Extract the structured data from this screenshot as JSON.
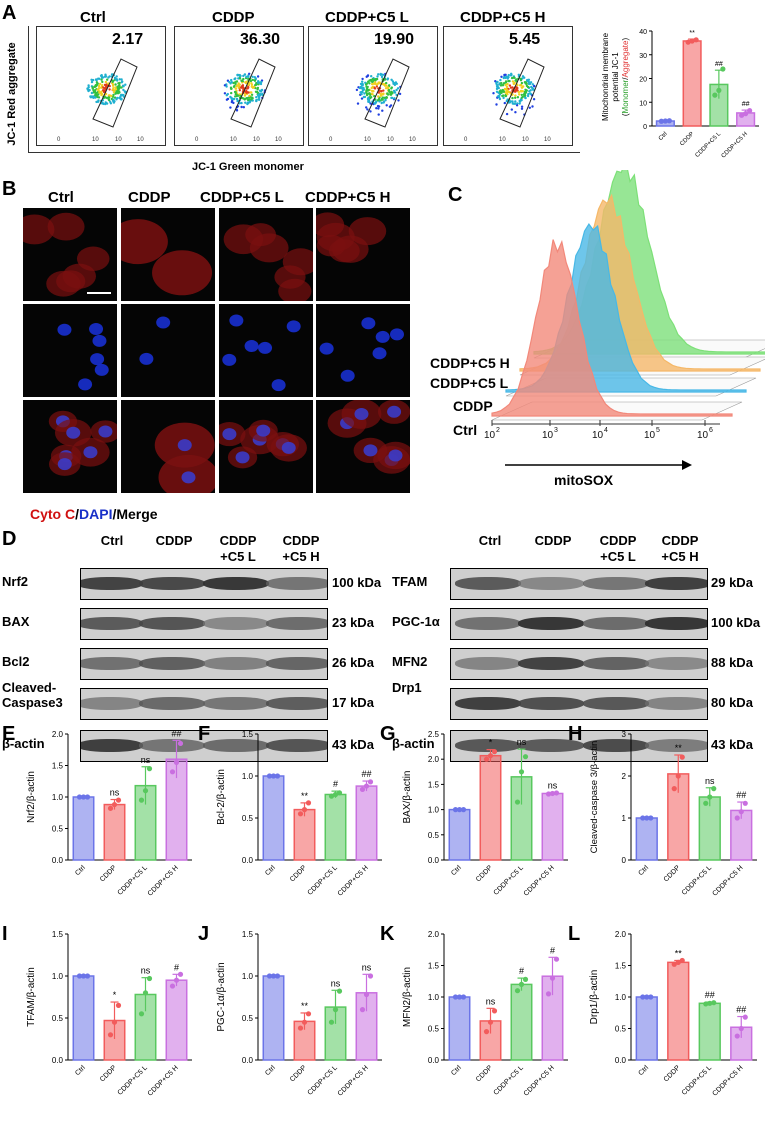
{
  "panels": {
    "A": "A",
    "B": "B",
    "C": "C",
    "D": "D",
    "E": "E",
    "F": "F",
    "G": "G",
    "H": "H",
    "I": "I",
    "J": "J",
    "K": "K",
    "L": "L"
  },
  "groups": [
    "Ctrl",
    "CDDP",
    "CDDP+C5 L",
    "CDDP+C5 H"
  ],
  "panel_a": {
    "ylabel_flow": "JC-1 Red aggregate",
    "xlabel_flow": "JC-1 Green monomer",
    "percentages": [
      "2.17",
      "36.30",
      "19.90",
      "5.45"
    ],
    "axis_ticks": [
      "0",
      "10",
      "10",
      "10"
    ],
    "bar_ylabel_line1": "Mitochondrial membrane",
    "bar_ylabel_line2": "potential JC-1",
    "bar_ylabel_mono": "Monomer",
    "bar_ylabel_agg": "Aggregate"
  },
  "panel_b": {
    "legend_cyto": "Cyto C",
    "legend_dapi": "DAPI",
    "legend_merge": "Merge"
  },
  "panel_c": {
    "rows": [
      "CDDP+C5 H",
      "CDDP+C5 L",
      "CDDP",
      "Ctrl"
    ],
    "xlabel": "mitoSOX",
    "ticks": [
      "10",
      "10",
      "10",
      "10",
      "10"
    ],
    "tick_exps": [
      "2",
      "3",
      "4",
      "5",
      "6"
    ]
  },
  "panel_d": {
    "lanes": [
      "Ctrl",
      "CDDP",
      "CDDP\n+C5 L",
      "CDDP\n+C5 H"
    ],
    "left_rows": [
      {
        "name": "Nrf2",
        "kda": "100 kDa"
      },
      {
        "name": "BAX",
        "kda": "23 kDa"
      },
      {
        "name": "Bcl2",
        "kda": "26 kDa"
      },
      {
        "name": "Cleaved-\nCaspase3",
        "kda": "17 kDa"
      },
      {
        "name": "β-actin",
        "kda": "43 kDa"
      }
    ],
    "right_rows": [
      {
        "name": "TFAM",
        "kda": "29 kDa"
      },
      {
        "name": "PGC-1α",
        "kda": "100 kDa"
      },
      {
        "name": "MFN2",
        "kda": "88 kDa"
      },
      {
        "name": "Drp1",
        "kda": "80 kDa"
      },
      {
        "name": "β-actin",
        "kda": "43 kDa"
      }
    ]
  },
  "colors": {
    "ctrl": "#6b74e8",
    "cddp": "#f25c5c",
    "c5l": "#58c85e",
    "c5h": "#c96fe0"
  },
  "chart_data": [
    {
      "id": "A",
      "type": "bar",
      "ylabel": "Mitochondrial membrane potential JC-1 (Monomer/Aggregate)",
      "categories": [
        "Ctrl",
        "CDDP",
        "CDDP+C5 L",
        "CDDP+C5 H"
      ],
      "values": [
        2.1,
        35.8,
        17.5,
        5.5
      ],
      "errors": [
        0.3,
        0.8,
        6,
        1.2
      ],
      "ylim": [
        0,
        40
      ],
      "yticks": [
        "0",
        "10",
        "20",
        "30",
        "40"
      ],
      "marks": [
        "",
        "**",
        "##",
        "##"
      ],
      "points": [
        [
          2,
          2.1,
          2.2
        ],
        [
          35.3,
          35.8,
          36.3
        ],
        [
          13,
          15,
          24
        ],
        [
          4.5,
          5.2,
          6.5
        ]
      ]
    },
    {
      "id": "E",
      "type": "bar",
      "ylabel": "Nrf2/β-actin",
      "categories": [
        "Ctrl",
        "CDDP",
        "CDDP+C5 L",
        "CDDP+C5 H"
      ],
      "values": [
        1.0,
        0.88,
        1.18,
        1.6
      ],
      "errors": [
        0,
        0.08,
        0.3,
        0.3
      ],
      "ylim": [
        0,
        2.0
      ],
      "yticks": [
        "0.0",
        "0.5",
        "1.0",
        "1.5",
        "2.0"
      ],
      "marks": [
        "",
        "ns",
        "ns",
        "##"
      ],
      "points": [
        [
          1,
          1,
          1
        ],
        [
          0.82,
          0.88,
          0.95
        ],
        [
          0.95,
          1.1,
          1.45
        ],
        [
          1.4,
          1.55,
          1.85
        ]
      ]
    },
    {
      "id": "F",
      "type": "bar",
      "ylabel": "Bcl-2/β-actin",
      "categories": [
        "Ctrl",
        "CDDP",
        "CDDP+C5 L",
        "CDDP+C5 H"
      ],
      "values": [
        1.0,
        0.6,
        0.78,
        0.88
      ],
      "errors": [
        0,
        0.08,
        0.04,
        0.06
      ],
      "ylim": [
        0,
        1.5
      ],
      "yticks": [
        "0.0",
        "0.5",
        "1.0",
        "1.5"
      ],
      "marks": [
        "",
        "**",
        "#",
        "##"
      ],
      "points": [
        [
          1,
          1,
          1
        ],
        [
          0.55,
          0.6,
          0.68
        ],
        [
          0.76,
          0.78,
          0.8
        ],
        [
          0.84,
          0.88,
          0.93
        ]
      ]
    },
    {
      "id": "G",
      "type": "bar",
      "ylabel": "BAX/β-actin",
      "categories": [
        "Ctrl",
        "CDDP",
        "CDDP+C5 L",
        "CDDP+C5 H"
      ],
      "values": [
        1.0,
        2.07,
        1.65,
        1.32
      ],
      "errors": [
        0,
        0.12,
        0.55,
        0.02
      ],
      "ylim": [
        0,
        2.5
      ],
      "yticks": [
        "0.0",
        "0.5",
        "1.0",
        "1.5",
        "2.0",
        "2.5"
      ],
      "marks": [
        "",
        "*",
        "ns",
        "ns"
      ],
      "points": [
        [
          1,
          1,
          1
        ],
        [
          2.0,
          2.07,
          2.15
        ],
        [
          1.15,
          1.75,
          2.05
        ],
        [
          1.31,
          1.32,
          1.33
        ]
      ]
    },
    {
      "id": "H",
      "type": "bar",
      "ylabel": "Cleaved-caspase 3/β-actin",
      "categories": [
        "Ctrl",
        "CDDP",
        "CDDP+C5 L",
        "CDDP+C5 H"
      ],
      "values": [
        1.0,
        2.05,
        1.5,
        1.18
      ],
      "errors": [
        0,
        0.45,
        0.22,
        0.2
      ],
      "ylim": [
        0,
        3
      ],
      "yticks": [
        "0",
        "1",
        "2",
        "3"
      ],
      "marks": [
        "",
        "**",
        "ns",
        "##"
      ],
      "points": [
        [
          1,
          1,
          1
        ],
        [
          1.7,
          2.0,
          2.45
        ],
        [
          1.35,
          1.5,
          1.7
        ],
        [
          1.0,
          1.15,
          1.35
        ]
      ]
    },
    {
      "id": "I",
      "type": "bar",
      "ylabel": "TFAM/β-actin",
      "categories": [
        "Ctrl",
        "CDDP",
        "CDDP+C5 L",
        "CDDP+C5 H"
      ],
      "values": [
        1.0,
        0.47,
        0.78,
        0.95
      ],
      "errors": [
        0,
        0.22,
        0.2,
        0.07
      ],
      "ylim": [
        0,
        1.5
      ],
      "yticks": [
        "0.0",
        "0.5",
        "1.0",
        "1.5"
      ],
      "marks": [
        "",
        "*",
        "ns",
        "#"
      ],
      "points": [
        [
          1,
          1,
          1
        ],
        [
          0.3,
          0.45,
          0.65
        ],
        [
          0.55,
          0.8,
          0.97
        ],
        [
          0.88,
          0.95,
          1.02
        ]
      ]
    },
    {
      "id": "J",
      "type": "bar",
      "ylabel": "PGC-1α/β-actin",
      "categories": [
        "Ctrl",
        "CDDP",
        "CDDP+C5 L",
        "CDDP+C5 H"
      ],
      "values": [
        1.0,
        0.46,
        0.63,
        0.8
      ],
      "errors": [
        0,
        0.1,
        0.2,
        0.22
      ],
      "ylim": [
        0,
        1.5
      ],
      "yticks": [
        "0.0",
        "0.5",
        "1.0",
        "1.5"
      ],
      "marks": [
        "",
        "**",
        "ns",
        "ns"
      ],
      "points": [
        [
          1,
          1,
          1
        ],
        [
          0.38,
          0.45,
          0.55
        ],
        [
          0.45,
          0.6,
          0.82
        ],
        [
          0.6,
          0.78,
          1.0
        ]
      ]
    },
    {
      "id": "K",
      "type": "bar",
      "ylabel": "MFN2/β-actin",
      "categories": [
        "Ctrl",
        "CDDP",
        "CDDP+C5 L",
        "CDDP+C5 H"
      ],
      "values": [
        1.0,
        0.62,
        1.2,
        1.33
      ],
      "errors": [
        0,
        0.2,
        0.1,
        0.3
      ],
      "ylim": [
        0,
        2.0
      ],
      "yticks": [
        "0.0",
        "0.5",
        "1.0",
        "1.5",
        "2.0"
      ],
      "marks": [
        "",
        "ns",
        "#",
        "#"
      ],
      "points": [
        [
          1,
          1,
          1
        ],
        [
          0.45,
          0.6,
          0.78
        ],
        [
          1.1,
          1.2,
          1.28
        ],
        [
          1.05,
          1.3,
          1.6
        ]
      ]
    },
    {
      "id": "L",
      "type": "bar",
      "ylabel": "Drp1/β-actin",
      "categories": [
        "Ctrl",
        "CDDP",
        "CDDP+C5 L",
        "CDDP+C5 H"
      ],
      "values": [
        1.0,
        1.55,
        0.9,
        0.52
      ],
      "errors": [
        0,
        0.03,
        0.02,
        0.17
      ],
      "ylim": [
        0,
        2.0
      ],
      "yticks": [
        "0.0",
        "0.5",
        "1.0",
        "1.5",
        "2.0"
      ],
      "marks": [
        "",
        "**",
        "##",
        "##"
      ],
      "points": [
        [
          1,
          1,
          1
        ],
        [
          1.52,
          1.55,
          1.58
        ],
        [
          0.89,
          0.9,
          0.91
        ],
        [
          0.38,
          0.5,
          0.68
        ]
      ]
    }
  ]
}
